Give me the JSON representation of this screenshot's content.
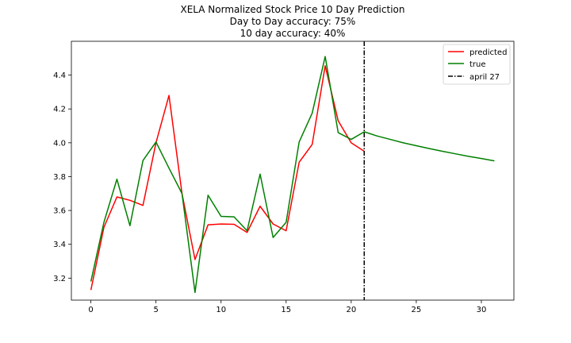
{
  "chart_data": {
    "type": "line",
    "title_lines": [
      "XELA Normalized Stock Price 10 Day Prediction",
      "Day to Day accuracy: 75%",
      "10 day accuracy: 40%"
    ],
    "xlabel": "",
    "ylabel": "",
    "xlim": [
      -1.5,
      32.5
    ],
    "ylim": [
      3.07,
      4.6
    ],
    "xticks": [
      0,
      5,
      10,
      15,
      20,
      25,
      30
    ],
    "yticks": [
      3.2,
      3.4,
      3.6,
      3.8,
      4.0,
      4.2,
      4.4
    ],
    "ytick_labels": [
      "3.2",
      "3.4",
      "3.6",
      "3.8",
      "4.0",
      "4.2",
      "4.4"
    ],
    "grid": false,
    "legend_position": "top-right",
    "series": [
      {
        "name": "predicted",
        "color": "#ff0000",
        "x": [
          0,
          1,
          2,
          3,
          4,
          5,
          6,
          7,
          8,
          9,
          10,
          11,
          12,
          13,
          14,
          15,
          16,
          17,
          18,
          19,
          20,
          21
        ],
        "y": [
          3.13,
          3.5,
          3.68,
          3.66,
          3.63,
          4.0,
          4.28,
          3.7,
          3.31,
          3.515,
          3.52,
          3.518,
          3.47,
          3.625,
          3.52,
          3.48,
          3.885,
          3.99,
          4.455,
          4.13,
          4.0,
          3.95
        ]
      },
      {
        "name": "true",
        "color": "#008000",
        "x": [
          0,
          1,
          2,
          3,
          4,
          5,
          6,
          7,
          8,
          9,
          10,
          11,
          12,
          13,
          14,
          15,
          16,
          17,
          18,
          19,
          20,
          21,
          22,
          23,
          24,
          25,
          26,
          27,
          28,
          29,
          30,
          31
        ],
        "y": [
          3.18,
          3.53,
          3.785,
          3.51,
          3.895,
          4.005,
          3.85,
          3.7,
          3.115,
          3.69,
          3.565,
          3.562,
          3.48,
          3.815,
          3.44,
          3.53,
          4.005,
          4.175,
          4.51,
          4.06,
          4.02,
          4.065,
          4.04,
          4.02,
          4.0,
          3.983,
          3.966,
          3.95,
          3.935,
          3.92,
          3.907,
          3.893
        ]
      }
    ],
    "reference_line": {
      "name": "april 27",
      "x": 21,
      "color": "#000000",
      "style": "dashdot"
    }
  }
}
